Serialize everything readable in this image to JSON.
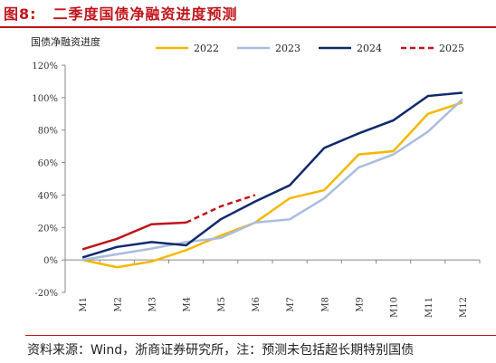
{
  "header": {
    "figure_no": "图8:",
    "title": "二季度国债净融资进度预测"
  },
  "footnote": "资料来源：Wind，浙商证券研究所，注：预测未包括超长期特别国债",
  "chart_data": {
    "type": "line",
    "ylabel": "国债净融资进度",
    "categories": [
      "M1",
      "M2",
      "M3",
      "M4",
      "M5",
      "M6",
      "M7",
      "M8",
      "M9",
      "M10",
      "M11",
      "M12"
    ],
    "yticks": [
      "120%",
      "100%",
      "80%",
      "60%",
      "40%",
      "20%",
      "0%",
      "-20%"
    ],
    "ylim": [
      -20,
      120
    ],
    "grid": false,
    "legend_position": "top",
    "series": [
      {
        "name": "2022",
        "color": "#f5b700",
        "dashed": false,
        "values": [
          0,
          -4.5,
          -1,
          6,
          15,
          23,
          38,
          43,
          65,
          67,
          90,
          97
        ]
      },
      {
        "name": "2023",
        "color": "#a9bddf",
        "dashed": false,
        "values": [
          0,
          3.5,
          7,
          11,
          13.5,
          23,
          25,
          38,
          57,
          65,
          79,
          99
        ]
      },
      {
        "name": "2024",
        "color": "#0f2a6b",
        "dashed": false,
        "values": [
          1.5,
          8,
          11,
          9,
          25,
          36,
          46,
          69,
          78,
          86,
          101,
          103
        ]
      },
      {
        "name": "2025",
        "color": "#c0141b",
        "dashed": true,
        "values": [
          6.5,
          13,
          22,
          23,
          33,
          40,
          null,
          null,
          null,
          null,
          null,
          null
        ],
        "solid_until_index": 3
      }
    ]
  }
}
